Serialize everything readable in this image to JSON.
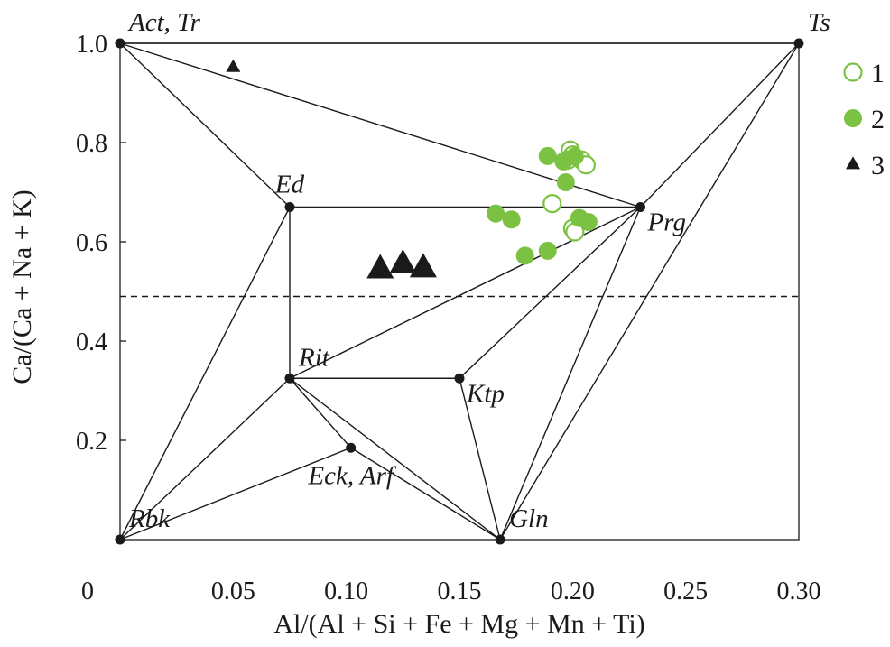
{
  "colors": {
    "green": "#7cc242",
    "black": "#1a1a1a"
  },
  "chart_data": {
    "type": "scatter",
    "title": "",
    "xlabel": "Al/(Al + Si + Fe + Mg + Mn + Ti)",
    "ylabel": "Ca/(Ca + Na + K)",
    "xlim": [
      0,
      0.3
    ],
    "ylim": [
      0,
      1.0
    ],
    "x_ticks": [
      {
        "value": 0,
        "label": "0"
      },
      {
        "value": 0.05,
        "label": "0.05"
      },
      {
        "value": 0.1,
        "label": "0.10"
      },
      {
        "value": 0.15,
        "label": "0.15"
      },
      {
        "value": 0.2,
        "label": "0.20"
      },
      {
        "value": 0.25,
        "label": "0.25"
      },
      {
        "value": 0.3,
        "label": "0.30"
      }
    ],
    "y_ticks": [
      {
        "value": 0.2,
        "label": "0.2"
      },
      {
        "value": 0.4,
        "label": "0.4"
      },
      {
        "value": 0.6,
        "label": "0.6"
      },
      {
        "value": 0.8,
        "label": "0.8"
      },
      {
        "value": 1.0,
        "label": "1.0"
      }
    ],
    "grid": false,
    "legend_position": "top-right",
    "reference_line": {
      "y": 0.49,
      "style": "dashed"
    },
    "end_members": [
      {
        "id": "act",
        "label": "Act, Tr",
        "x": 0,
        "y": 1.0,
        "label_pos": "above-right"
      },
      {
        "id": "ts",
        "label": "Ts",
        "x": 0.3,
        "y": 1.0,
        "label_pos": "above-right"
      },
      {
        "id": "ed",
        "label": "Ed",
        "x": 0.075,
        "y": 0.67,
        "label_pos": "above"
      },
      {
        "id": "prg",
        "label": "Prg",
        "x": 0.23,
        "y": 0.67,
        "label_pos": "below-right"
      },
      {
        "id": "rit",
        "label": "Rit",
        "x": 0.075,
        "y": 0.325,
        "label_pos": "above-right"
      },
      {
        "id": "ktp",
        "label": "Ktp",
        "x": 0.15,
        "y": 0.325,
        "label_pos": "below-right"
      },
      {
        "id": "eck",
        "label": "Eck, Arf",
        "x": 0.102,
        "y": 0.185,
        "label_pos": "below"
      },
      {
        "id": "rbk",
        "label": "Rbk",
        "x": 0,
        "y": 0,
        "label_pos": "above-right"
      },
      {
        "id": "gln",
        "label": "Gln",
        "x": 0.168,
        "y": 0,
        "label_pos": "above-right"
      }
    ],
    "tie_lines": [
      [
        "act",
        "ts"
      ],
      [
        "act",
        "ed"
      ],
      [
        "act",
        "prg"
      ],
      [
        "ed",
        "prg"
      ],
      [
        "ts",
        "prg"
      ],
      [
        "ed",
        "rit"
      ],
      [
        "ed",
        "rbk"
      ],
      [
        "rit",
        "prg"
      ],
      [
        "rit",
        "ktp"
      ],
      [
        "ktp",
        "prg"
      ],
      [
        "rit",
        "rbk"
      ],
      [
        "rit",
        "gln"
      ],
      [
        "rit",
        "eck"
      ],
      [
        "eck",
        "rbk"
      ],
      [
        "eck",
        "gln"
      ],
      [
        "ktp",
        "gln"
      ],
      [
        "prg",
        "gln"
      ],
      [
        "ts",
        "gln"
      ]
    ],
    "series": [
      {
        "name": "1",
        "marker": "open-circle",
        "points": [
          {
            "x": 0.199,
            "y": 0.785
          },
          {
            "x": 0.2,
            "y": 0.775
          },
          {
            "x": 0.204,
            "y": 0.765
          },
          {
            "x": 0.206,
            "y": 0.755
          },
          {
            "x": 0.198,
            "y": 0.765
          },
          {
            "x": 0.191,
            "y": 0.677
          },
          {
            "x": 0.2,
            "y": 0.627
          },
          {
            "x": 0.201,
            "y": 0.62
          }
        ]
      },
      {
        "name": "2",
        "marker": "filled-circle",
        "points": [
          {
            "x": 0.189,
            "y": 0.773
          },
          {
            "x": 0.196,
            "y": 0.762
          },
          {
            "x": 0.201,
            "y": 0.772
          },
          {
            "x": 0.197,
            "y": 0.72
          },
          {
            "x": 0.166,
            "y": 0.657
          },
          {
            "x": 0.173,
            "y": 0.645
          },
          {
            "x": 0.203,
            "y": 0.648
          },
          {
            "x": 0.207,
            "y": 0.64
          },
          {
            "x": 0.189,
            "y": 0.582
          },
          {
            "x": 0.179,
            "y": 0.572
          }
        ]
      },
      {
        "name": "3",
        "marker": "filled-triangle",
        "points": [
          {
            "x": 0.05,
            "y": 0.952,
            "size": "small"
          },
          {
            "x": 0.115,
            "y": 0.545,
            "size": "large"
          },
          {
            "x": 0.125,
            "y": 0.555,
            "size": "large"
          },
          {
            "x": 0.134,
            "y": 0.547,
            "size": "large"
          }
        ]
      }
    ]
  }
}
